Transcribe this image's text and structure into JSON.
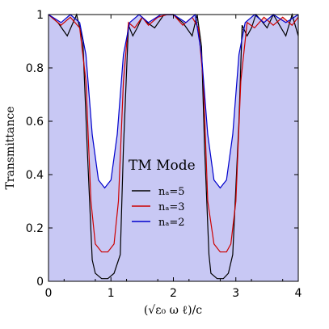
{
  "chart_data": {
    "type": "area",
    "xlabel": "(√ε₀ ω ℓ)/c",
    "ylabel": "Transmittance",
    "xlim": [
      0,
      4
    ],
    "ylim": [
      0,
      1
    ],
    "x_ticks": [
      "0",
      "1",
      "2",
      "3",
      "4"
    ],
    "y_ticks": [
      "0",
      "0.2",
      "0.4",
      "0.6",
      "0.8",
      "1"
    ],
    "grid": false,
    "legend": {
      "title": "TM Mode",
      "placement": "center",
      "entries": [
        "nₐ=5",
        "nₐ=3",
        "nₐ=2"
      ]
    },
    "series": [
      {
        "name": "nₐ=5",
        "color": "#000000",
        "fill": "hatched-gray",
        "x": [
          0.0,
          0.15,
          0.3,
          0.45,
          0.55,
          0.62,
          0.7,
          0.75,
          0.85,
          0.95,
          1.05,
          1.15,
          1.2,
          1.28,
          1.35,
          1.42,
          1.5,
          1.58,
          1.7,
          1.85,
          2.0,
          2.15,
          2.3,
          2.38,
          2.45,
          2.5,
          2.57,
          2.6,
          2.7,
          2.8,
          2.88,
          2.95,
          3.05,
          3.1,
          3.18,
          3.25,
          3.32,
          3.4,
          3.5,
          3.6,
          3.7,
          3.8,
          3.9,
          4.0
        ],
        "y": [
          1.0,
          0.97,
          0.92,
          1.0,
          0.9,
          0.5,
          0.08,
          0.03,
          0.01,
          0.01,
          0.03,
          0.1,
          0.5,
          0.96,
          0.92,
          0.95,
          0.99,
          0.97,
          0.95,
          1.0,
          1.0,
          0.97,
          0.92,
          1.0,
          0.88,
          0.5,
          0.1,
          0.03,
          0.01,
          0.01,
          0.03,
          0.1,
          0.6,
          0.96,
          0.92,
          0.95,
          1.0,
          0.98,
          0.95,
          1.0,
          0.96,
          0.92,
          1.0,
          0.92
        ]
      },
      {
        "name": "nₐ=3",
        "color": "#cc0000",
        "fill": "#f4c6c6",
        "x": [
          0.0,
          0.2,
          0.35,
          0.5,
          0.6,
          0.68,
          0.75,
          0.85,
          0.95,
          1.05,
          1.12,
          1.2,
          1.28,
          1.38,
          1.5,
          1.6,
          1.75,
          1.9,
          2.0,
          2.15,
          2.3,
          2.4,
          2.48,
          2.55,
          2.65,
          2.75,
          2.85,
          2.92,
          3.0,
          3.08,
          3.18,
          3.3,
          3.45,
          3.6,
          3.75,
          3.9,
          4.0
        ],
        "y": [
          1.0,
          0.96,
          0.99,
          0.95,
          0.75,
          0.3,
          0.14,
          0.11,
          0.11,
          0.14,
          0.3,
          0.75,
          0.97,
          0.95,
          0.99,
          0.96,
          0.99,
          1.0,
          1.0,
          0.96,
          0.99,
          0.95,
          0.75,
          0.3,
          0.14,
          0.11,
          0.11,
          0.14,
          0.3,
          0.75,
          0.97,
          0.95,
          0.99,
          0.96,
          0.99,
          0.96,
          0.99
        ]
      },
      {
        "name": "nₐ=2",
        "color": "#0000cc",
        "fill": "#c8c8f4",
        "x": [
          0.0,
          0.2,
          0.35,
          0.5,
          0.6,
          0.7,
          0.8,
          0.9,
          1.0,
          1.1,
          1.2,
          1.3,
          1.45,
          1.6,
          1.8,
          2.0,
          2.2,
          2.35,
          2.45,
          2.55,
          2.65,
          2.75,
          2.85,
          2.95,
          3.05,
          3.15,
          3.3,
          3.45,
          3.6,
          3.8,
          4.0
        ],
        "y": [
          1.0,
          0.97,
          1.0,
          0.97,
          0.85,
          0.55,
          0.38,
          0.35,
          0.38,
          0.55,
          0.85,
          0.97,
          1.0,
          0.97,
          1.0,
          1.0,
          0.97,
          1.0,
          0.85,
          0.55,
          0.38,
          0.35,
          0.38,
          0.55,
          0.85,
          0.97,
          1.0,
          0.97,
          1.0,
          0.97,
          1.0
        ]
      }
    ]
  }
}
